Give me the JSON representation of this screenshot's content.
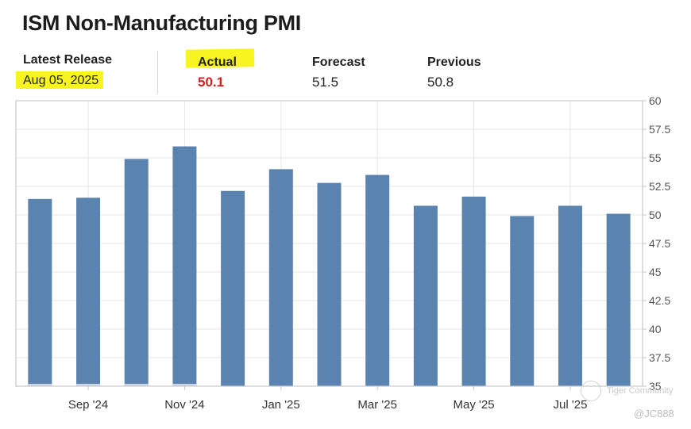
{
  "header": {
    "title": "ISM Non-Manufacturing PMI",
    "latest_release_label": "Latest Release",
    "latest_release_date": "Aug 05, 2025",
    "actual_label": "Actual",
    "actual_value": "50.1",
    "forecast_label": "Forecast",
    "forecast_value": "51.5",
    "previous_label": "Previous",
    "previous_value": "50.8"
  },
  "watermark": {
    "brand": "Tiger Community",
    "user": "@JC888"
  },
  "colors": {
    "bar": "#5b83b0",
    "bar_base": "#c9d7e8",
    "highlight": "#f7f421",
    "actual": "#d51f1f",
    "grid": "#e6e6e6",
    "frame": "#c8c8c8"
  },
  "chart_data": {
    "type": "bar",
    "title": "ISM Non-Manufacturing PMI",
    "categories": [
      "Aug '24",
      "Sep '24",
      "Oct '24",
      "Nov '24",
      "Dec '24",
      "Jan '25",
      "Feb '25",
      "Mar '25",
      "Apr '25",
      "May '25",
      "Jun '25",
      "Jul '25",
      "Aug '25"
    ],
    "values": [
      51.4,
      51.5,
      54.9,
      56.0,
      52.1,
      54.0,
      52.8,
      53.5,
      50.8,
      51.6,
      49.9,
      50.8,
      50.1
    ],
    "x_tick_labels": [
      "Sep '24",
      "Nov '24",
      "Jan '25",
      "Mar '25",
      "May '25",
      "Jul '25"
    ],
    "x_tick_indices": [
      1,
      3,
      5,
      7,
      9,
      11
    ],
    "ylim": [
      35,
      60
    ],
    "y_ticks": [
      "60",
      "57.5",
      "55",
      "52.5",
      "50",
      "47.5",
      "45",
      "42.5",
      "40",
      "37.5",
      "35"
    ],
    "y_tick_values": [
      60,
      57.5,
      55,
      52.5,
      50,
      47.5,
      45,
      42.5,
      40,
      37.5,
      35
    ],
    "y_axis_position": "right",
    "grid": true,
    "xlabel": "",
    "ylabel": ""
  }
}
